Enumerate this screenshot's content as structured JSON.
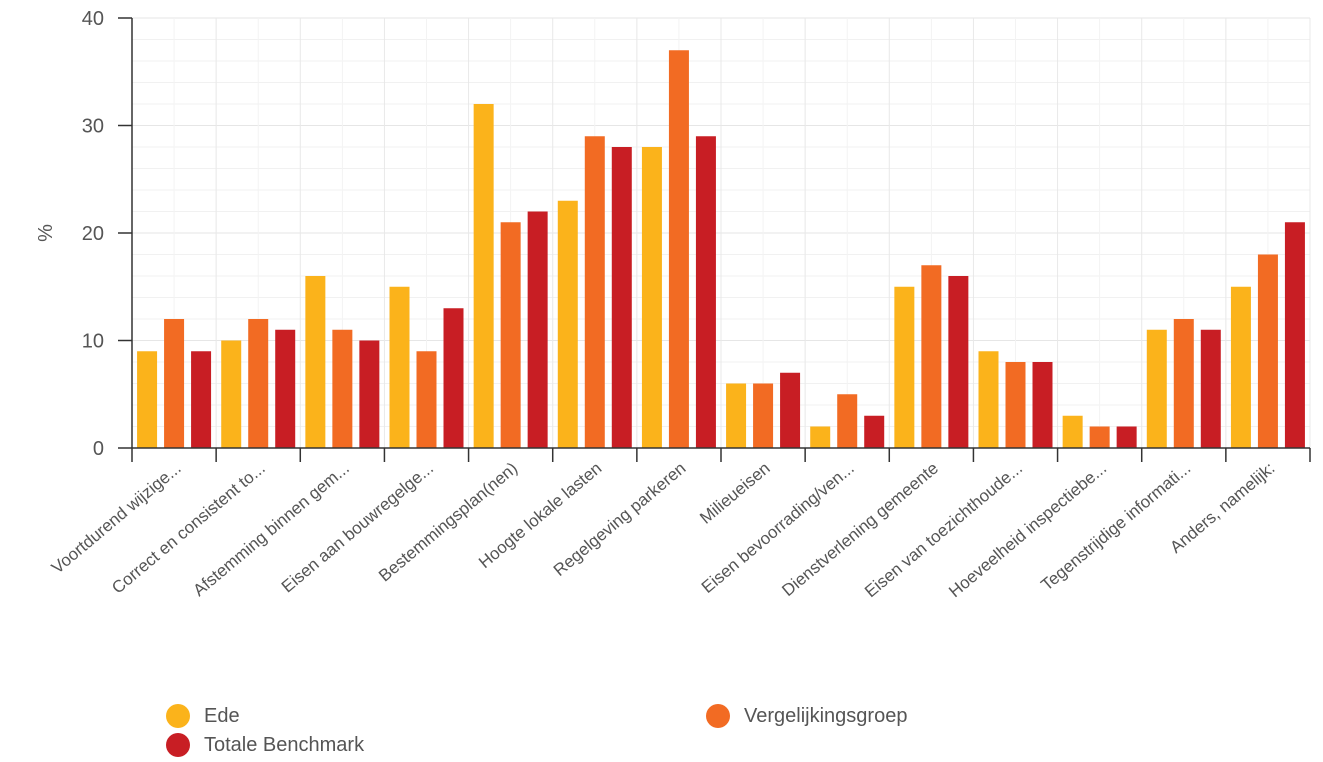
{
  "chart_data": {
    "type": "bar",
    "title": "",
    "xlabel": "",
    "ylabel": "%",
    "ylim": [
      0,
      40
    ],
    "yticks": [
      0,
      10,
      20,
      30,
      40
    ],
    "grid": true,
    "legend_position": "bottom",
    "categories": [
      "Voortdurend wijzige...",
      "Correct en consistent to...",
      "Afstemming binnen gem...",
      "Eisen aan bouwregelge...",
      "Bestemmingsplan(nen)",
      "Hoogte lokale lasten",
      "Regelgeving parkeren",
      "Milieueisen",
      "Eisen bevoorrading/ven...",
      "Dienstverlening gemeente",
      "Eisen van toezichthoude...",
      "Hoeveelheid inspectiebe...",
      "Tegenstrijdige informati...",
      "Anders, namelijk:"
    ],
    "series": [
      {
        "name": "Ede",
        "color": "#fbb31b",
        "values": [
          9,
          10,
          16,
          15,
          32,
          23,
          28,
          6,
          2,
          15,
          9,
          3,
          11,
          15
        ]
      },
      {
        "name": "Vergelijkingsgroep",
        "color": "#f26b23",
        "values": [
          12,
          12,
          11,
          9,
          21,
          29,
          37,
          6,
          5,
          17,
          8,
          2,
          12,
          18
        ]
      },
      {
        "name": "Totale Benchmark",
        "color": "#c81e24",
        "values": [
          9,
          11,
          10,
          13,
          22,
          28,
          29,
          7,
          3,
          16,
          8,
          2,
          11,
          21
        ]
      }
    ]
  }
}
